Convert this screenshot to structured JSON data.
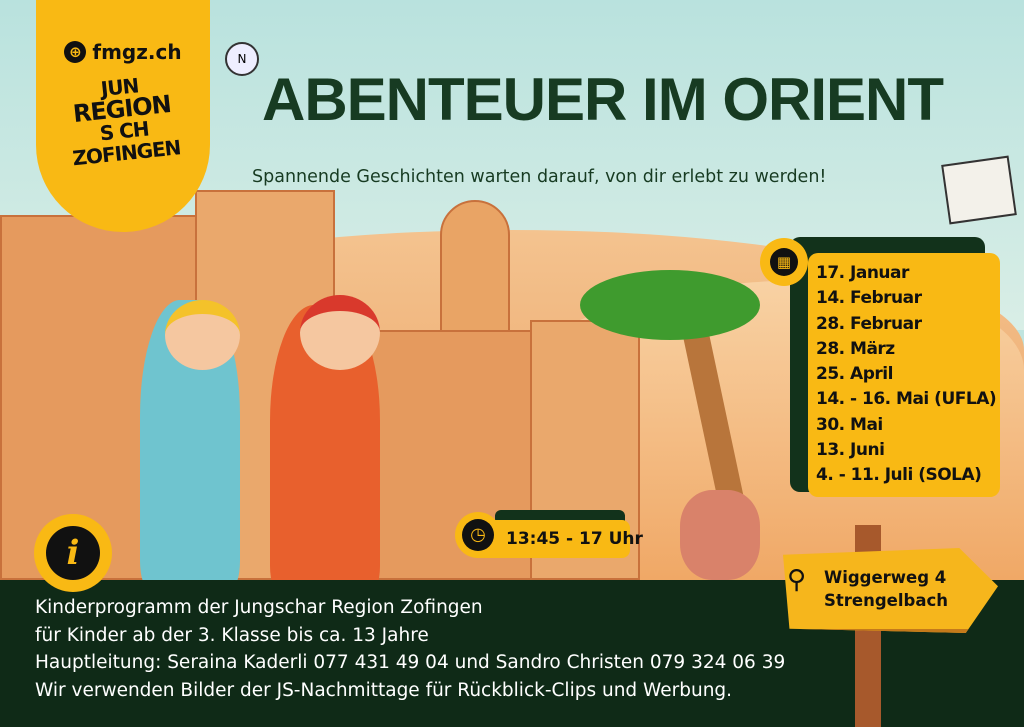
{
  "header": {
    "website": "fmgz.ch",
    "logo_text": [
      "JUN",
      "REGION",
      "S CH",
      "ZOFINGEN"
    ],
    "title": "ABENTEUER IM ORIENT",
    "subtitle": "Spannende Geschichten warten darauf, von dir erlebt zu werden!"
  },
  "dates": [
    "17. Januar",
    "14. Februar",
    "28. Februar",
    "28. März",
    "25. April",
    "14. - 16. Mai (UFLA)",
    "30. Mai",
    "13. Juni",
    "4. - 11. Juli (SOLA)"
  ],
  "time": "13:45 - 17 Uhr",
  "location": {
    "street": "Wiggerweg 4",
    "town": "Strengelbach"
  },
  "info_lines": [
    "Kinderprogramm der Jungschar Region Zofingen",
    "für Kinder ab der 3. Klasse bis ca. 13 Jahre",
    "Hauptleitung: Seraina Kaderli 077 431 49 04 und Sandro Christen 079 324 06 39",
    "Wir verwenden Bilder der JS-Nachmittage für Rückblick-Clips und Werbung."
  ],
  "icons": {
    "website": "globe-icon",
    "dates": "calendar-icon",
    "time": "clock-icon",
    "info": "info-icon",
    "location": "map-pin-icon"
  },
  "colors": {
    "yellow": "#f9b914",
    "dark_green": "#0f2a17",
    "title_green": "#173b22"
  }
}
